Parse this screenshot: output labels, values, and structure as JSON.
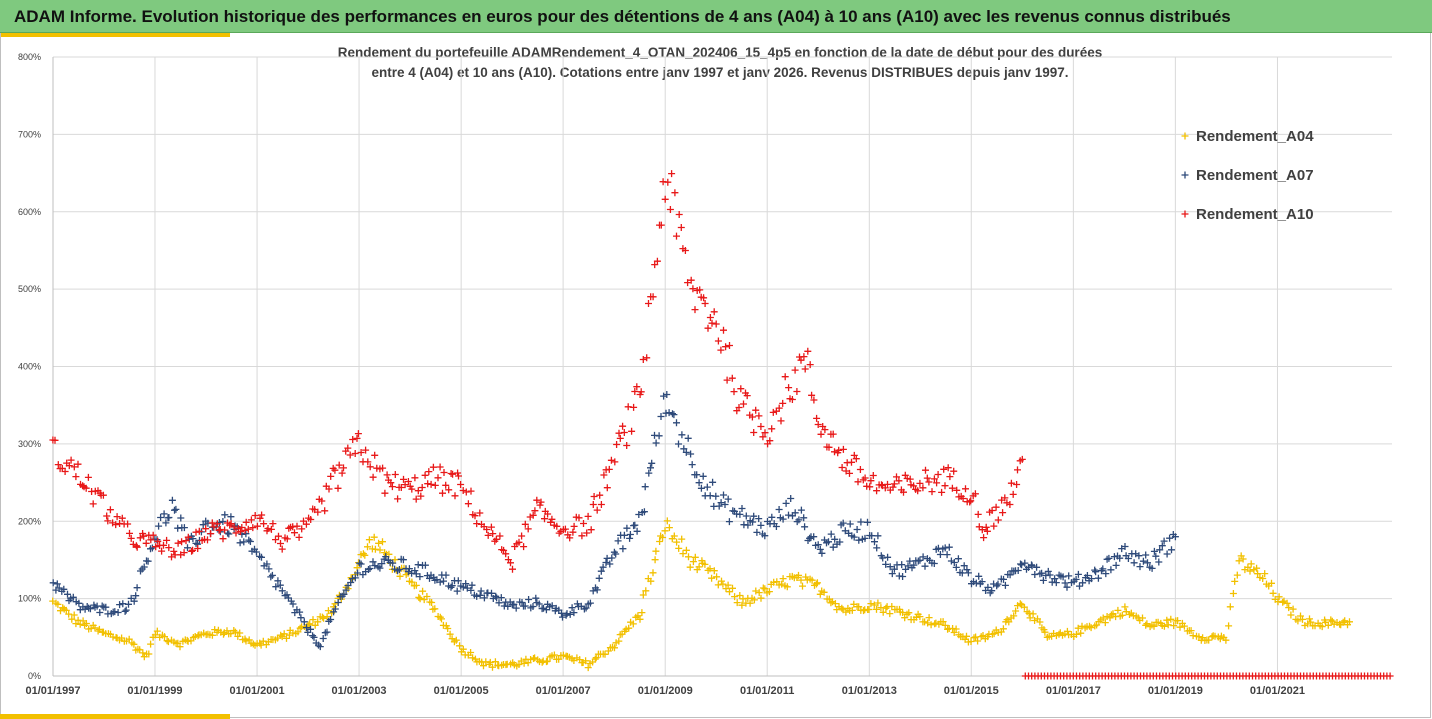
{
  "banner": {
    "title": "ADAM Informe. Evolution historique des performances en euros pour des détentions de 4 ans (A04) à 10 ans (A10) avec les revenus connus distribués"
  },
  "colors": {
    "banner_bg": "#7fc97f",
    "accent": "#f2c000",
    "A04": "#f2c000",
    "A07": "#2e4a7a",
    "A10": "#e81818"
  },
  "chart_data": {
    "type": "scatter",
    "marker": "plus",
    "title_line1": "Rendement du portefeuille ADAMRendement_4_OTAN_202406_15_4p5  en fonction de la date de début pour des durées",
    "title_line2": "entre 4 (A04) et 10 ans (A10). Cotations entre janv 1997 et janv 2026. Revenus DISTRIBUES depuis janv 1997.",
    "xlabel": "",
    "ylabel": "",
    "x_range": [
      "1997-01-01",
      "2023-04-01"
    ],
    "ylim": [
      0,
      8
    ],
    "y_ticks": [
      "0%",
      "100%",
      "200%",
      "300%",
      "400%",
      "500%",
      "600%",
      "700%",
      "800%"
    ],
    "x_ticks": [
      "01/01/1997",
      "01/01/1999",
      "01/01/2001",
      "01/01/2003",
      "01/01/2005",
      "01/01/2007",
      "01/01/2009",
      "01/01/2011",
      "01/01/2013",
      "01/01/2015",
      "01/01/2017",
      "01/01/2019",
      "01/01/2021"
    ],
    "grid": true,
    "legend_position": "right",
    "series": [
      {
        "name": "Rendement_A04",
        "color": "#f2c000",
        "points": [
          [
            "1997-01-01",
            0.95
          ],
          [
            "1997-07-01",
            0.7
          ],
          [
            "1998-01-01",
            0.55
          ],
          [
            "1998-07-01",
            0.45
          ],
          [
            "1998-11-01",
            0.25
          ],
          [
            "1999-01-01",
            0.55
          ],
          [
            "1999-07-01",
            0.42
          ],
          [
            "2000-01-01",
            0.55
          ],
          [
            "2000-07-01",
            0.58
          ],
          [
            "2001-01-01",
            0.4
          ],
          [
            "2001-07-01",
            0.5
          ],
          [
            "2002-01-01",
            0.65
          ],
          [
            "2002-07-01",
            0.85
          ],
          [
            "2003-01-01",
            1.45
          ],
          [
            "2003-04-01",
            1.75
          ],
          [
            "2003-07-01",
            1.6
          ],
          [
            "2004-01-01",
            1.2
          ],
          [
            "2004-07-01",
            0.85
          ],
          [
            "2005-01-01",
            0.35
          ],
          [
            "2005-07-01",
            0.15
          ],
          [
            "2006-01-01",
            0.15
          ],
          [
            "2006-07-01",
            0.2
          ],
          [
            "2007-01-01",
            0.25
          ],
          [
            "2007-07-01",
            0.15
          ],
          [
            "2008-01-01",
            0.4
          ],
          [
            "2008-07-01",
            0.8
          ],
          [
            "2009-01-01",
            1.95
          ],
          [
            "2009-07-01",
            1.5
          ],
          [
            "2010-01-01",
            1.25
          ],
          [
            "2010-07-01",
            0.95
          ],
          [
            "2011-01-01",
            1.1
          ],
          [
            "2011-07-01",
            1.25
          ],
          [
            "2012-01-01",
            1.15
          ],
          [
            "2012-07-01",
            0.85
          ],
          [
            "2013-01-01",
            0.92
          ],
          [
            "2013-07-01",
            0.85
          ],
          [
            "2014-01-01",
            0.75
          ],
          [
            "2014-07-01",
            0.65
          ],
          [
            "2015-01-01",
            0.45
          ],
          [
            "2015-07-01",
            0.55
          ],
          [
            "2016-01-01",
            0.95
          ],
          [
            "2016-07-01",
            0.5
          ],
          [
            "2017-01-01",
            0.55
          ],
          [
            "2017-07-01",
            0.7
          ],
          [
            "2018-01-01",
            0.85
          ],
          [
            "2018-07-01",
            0.65
          ],
          [
            "2019-01-01",
            0.7
          ],
          [
            "2019-07-01",
            0.5
          ],
          [
            "2020-01-01",
            0.5
          ],
          [
            "2020-04-01",
            1.5
          ],
          [
            "2020-10-01",
            1.25
          ],
          [
            "2021-01-01",
            1.0
          ],
          [
            "2021-07-01",
            0.7
          ],
          [
            "2022-01-01",
            0.68
          ],
          [
            "2022-06-01",
            0.7
          ]
        ]
      },
      {
        "name": "Rendement_A07",
        "color": "#2e4a7a",
        "points": [
          [
            "1997-01-01",
            1.2
          ],
          [
            "1997-07-01",
            0.9
          ],
          [
            "1998-01-01",
            0.85
          ],
          [
            "1998-07-01",
            0.9
          ],
          [
            "1999-01-01",
            1.8
          ],
          [
            "1999-05-01",
            2.2
          ],
          [
            "1999-09-01",
            1.65
          ],
          [
            "2000-01-01",
            1.95
          ],
          [
            "2000-07-01",
            1.95
          ],
          [
            "2001-01-01",
            1.55
          ],
          [
            "2001-07-01",
            1.1
          ],
          [
            "2002-01-01",
            0.6
          ],
          [
            "2002-04-01",
            0.4
          ],
          [
            "2002-07-01",
            0.8
          ],
          [
            "2003-01-01",
            1.4
          ],
          [
            "2003-07-01",
            1.45
          ],
          [
            "2004-01-01",
            1.4
          ],
          [
            "2004-07-01",
            1.3
          ],
          [
            "2005-01-01",
            1.15
          ],
          [
            "2005-07-01",
            1.05
          ],
          [
            "2006-01-01",
            0.9
          ],
          [
            "2006-07-01",
            0.95
          ],
          [
            "2007-01-01",
            0.8
          ],
          [
            "2007-07-01",
            0.95
          ],
          [
            "2008-01-01",
            1.6
          ],
          [
            "2008-07-01",
            2.0
          ],
          [
            "2009-01-01",
            3.6
          ],
          [
            "2009-07-01",
            2.85
          ],
          [
            "2010-01-01",
            2.25
          ],
          [
            "2010-07-01",
            2.05
          ],
          [
            "2011-01-01",
            1.9
          ],
          [
            "2011-07-01",
            2.2
          ],
          [
            "2012-01-01",
            1.65
          ],
          [
            "2012-07-01",
            1.85
          ],
          [
            "2013-01-01",
            1.9
          ],
          [
            "2013-07-01",
            1.35
          ],
          [
            "2014-01-01",
            1.45
          ],
          [
            "2014-07-01",
            1.65
          ],
          [
            "2015-01-01",
            1.25
          ],
          [
            "2015-07-01",
            1.1
          ],
          [
            "2016-01-01",
            1.5
          ],
          [
            "2016-07-01",
            1.3
          ],
          [
            "2017-01-01",
            1.2
          ],
          [
            "2017-07-01",
            1.35
          ],
          [
            "2018-01-01",
            1.6
          ],
          [
            "2018-07-01",
            1.45
          ],
          [
            "2019-01-01",
            1.8
          ]
        ]
      },
      {
        "name": "Rendement_A10",
        "color": "#e81818",
        "points": [
          [
            "1997-01-01",
            2.9
          ],
          [
            "1997-07-01",
            2.6
          ],
          [
            "1998-01-01",
            2.2
          ],
          [
            "1998-07-01",
            1.8
          ],
          [
            "1999-01-01",
            1.7
          ],
          [
            "1999-07-01",
            1.6
          ],
          [
            "2000-01-01",
            1.85
          ],
          [
            "2000-07-01",
            1.9
          ],
          [
            "2001-01-01",
            2.05
          ],
          [
            "2001-07-01",
            1.75
          ],
          [
            "2002-01-01",
            1.9
          ],
          [
            "2002-07-01",
            2.5
          ],
          [
            "2003-01-01",
            3.0
          ],
          [
            "2003-07-01",
            2.5
          ],
          [
            "2004-01-01",
            2.4
          ],
          [
            "2004-07-01",
            2.55
          ],
          [
            "2005-01-01",
            2.45
          ],
          [
            "2005-07-01",
            1.9
          ],
          [
            "2006-01-01",
            1.5
          ],
          [
            "2006-07-01",
            2.15
          ],
          [
            "2007-01-01",
            1.9
          ],
          [
            "2007-07-01",
            1.95
          ],
          [
            "2008-01-01",
            2.8
          ],
          [
            "2008-07-01",
            3.6
          ],
          [
            "2009-01-01",
            6.5
          ],
          [
            "2009-07-01",
            5.0
          ],
          [
            "2010-01-01",
            4.6
          ],
          [
            "2010-07-01",
            3.5
          ],
          [
            "2011-01-01",
            3.2
          ],
          [
            "2011-07-01",
            3.8
          ],
          [
            "2011-10-01",
            4.1
          ],
          [
            "2012-01-01",
            3.3
          ],
          [
            "2012-07-01",
            2.8
          ],
          [
            "2013-01-01",
            2.5
          ],
          [
            "2013-07-01",
            2.4
          ],
          [
            "2014-01-01",
            2.5
          ],
          [
            "2014-07-01",
            2.55
          ],
          [
            "2015-01-01",
            2.4
          ],
          [
            "2015-04-01",
            1.9
          ],
          [
            "2015-10-01",
            2.3
          ],
          [
            "2016-01-01",
            2.8
          ]
        ],
        "zero_segment": [
          "2016-01-01",
          "2023-04-01",
          0
        ]
      }
    ]
  }
}
